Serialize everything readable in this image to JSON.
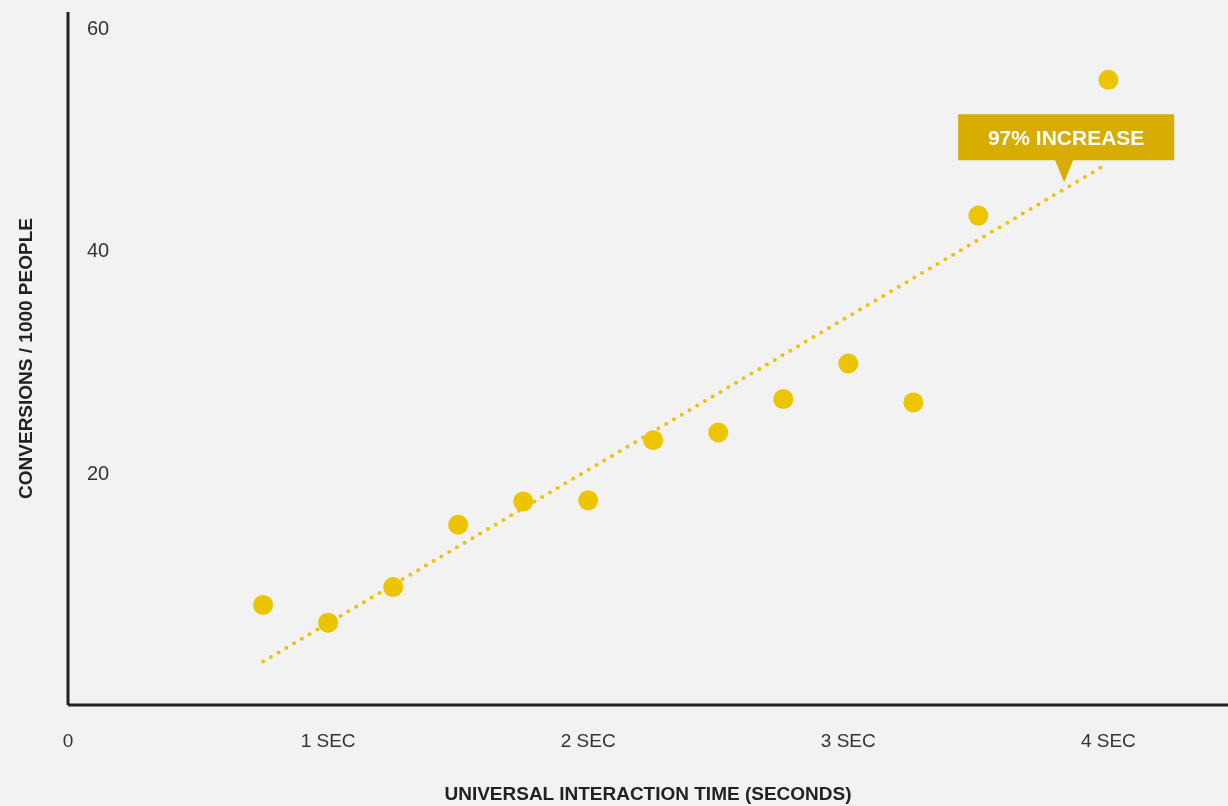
{
  "chart_data": {
    "type": "scatter",
    "xlabel": "UNIVERSAL INTERACTION TIME (SECONDS)",
    "ylabel": "CONVERSIONS / 1000 PEOPLE",
    "xlim": [
      0,
      4.46
    ],
    "ylim": [
      -0.9,
      61.4
    ],
    "xticks": [
      {
        "value": 0,
        "label": "0"
      },
      {
        "value": 1,
        "label": "1 SEC"
      },
      {
        "value": 2,
        "label": "2 SEC"
      },
      {
        "value": 3,
        "label": "3 SEC"
      },
      {
        "value": 4,
        "label": "4 SEC"
      }
    ],
    "yticks": [
      20,
      40,
      60
    ],
    "grid": false,
    "series": [
      {
        "color": "#ecc500",
        "marker": "circle",
        "x": [
          0.75,
          1.0,
          1.25,
          1.5,
          1.75,
          2.0,
          2.25,
          2.5,
          2.75,
          3.0,
          3.25,
          3.5,
          4.0
        ],
        "values": [
          8.1,
          6.5,
          9.7,
          15.3,
          17.4,
          17.5,
          22.9,
          23.6,
          26.6,
          29.8,
          26.3,
          43.1,
          55.3
        ]
      },
      {
        "type": "line",
        "color": "#ecc500",
        "marker": "none",
        "line_style": "dotted",
        "x": [
          0.75,
          3.97
        ],
        "values": [
          3.0,
          47.4
        ]
      }
    ],
    "annotations": [
      {
        "text": "97% INCREASE",
        "x": 3.83,
        "y": 46.1
      }
    ]
  }
}
